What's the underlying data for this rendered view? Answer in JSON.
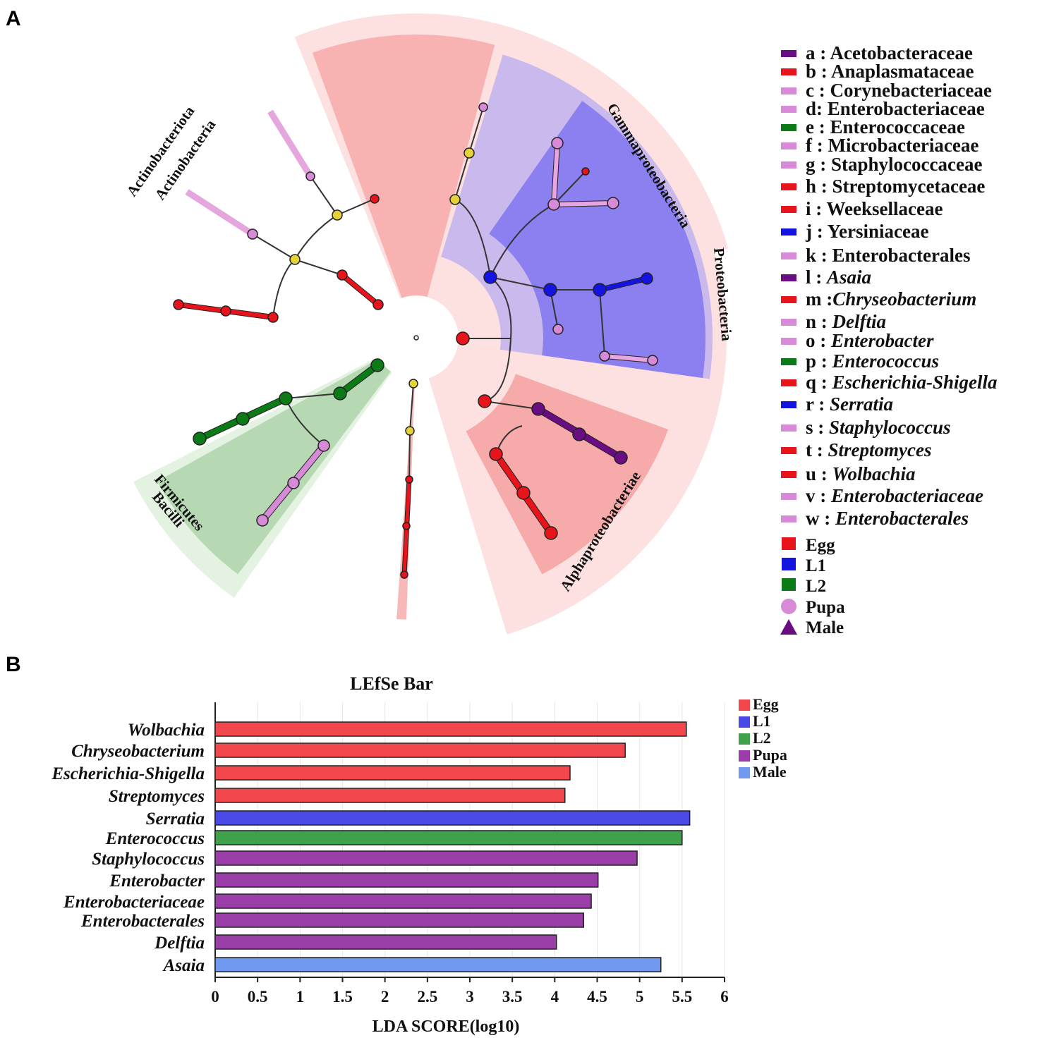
{
  "panel_a": {
    "label": "A",
    "cladogram": {
      "clade_labels": {
        "actinobacteriota": "Actinobacteriota",
        "actinobacteria": "Actinobacteria",
        "gammaproteobacteria": "Gammaproteobacteria",
        "proteobacteria": "Proteobacteria",
        "alphaproteobacteriae": "Alphaproteobacteriae",
        "firmicutes": "Firmicutes",
        "bacilli": "Bacilli"
      }
    },
    "legend": {
      "taxa": [
        {
          "code": "a : ",
          "name": "Acetobacteraceae",
          "italic": false,
          "color": "#6a0d83"
        },
        {
          "code": "b : ",
          "name": "Anaplasmataceae",
          "italic": false,
          "color": "#e8141b"
        },
        {
          "code": "c : ",
          "name": "Corynebacteriaceae",
          "italic": false,
          "color": "#d78ad8"
        },
        {
          "code": "d: ",
          "name": "Enterobacteriaceae",
          "italic": false,
          "color": "#d78ad8"
        },
        {
          "code": "e : ",
          "name": "Enterococcaceae",
          "italic": false,
          "color": "#0b7a17"
        },
        {
          "code": "f : ",
          "name": "Microbacteriaceae",
          "italic": false,
          "color": "#d78ad8"
        },
        {
          "code": "g : ",
          "name": "Staphylococcaceae",
          "italic": false,
          "color": "#d78ad8"
        },
        {
          "code": "h : ",
          "name": "Streptomycetaceae",
          "italic": false,
          "color": "#e8141b"
        },
        {
          "code": "i : ",
          "name": "Weeksellaceae",
          "italic": false,
          "color": "#e8141b"
        },
        {
          "code": "j : ",
          "name": "Yersiniaceae",
          "italic": false,
          "color": "#1414e0"
        },
        {
          "code": "k : ",
          "name": "Enterobacterales",
          "italic": false,
          "color": "#d78ad8"
        },
        {
          "code": "l : ",
          "name": "Asaia",
          "italic": true,
          "color": "#6a0d83"
        },
        {
          "code": "m :",
          "name": "Chryseobacterium",
          "italic": true,
          "color": "#e8141b"
        },
        {
          "code": "n : ",
          "name": "Delftia",
          "italic": true,
          "color": "#d78ad8"
        },
        {
          "code": "o : ",
          "name": "Enterobacter",
          "italic": true,
          "color": "#d78ad8"
        },
        {
          "code": "p : ",
          "name": "Enterococcus",
          "italic": true,
          "color": "#0b7a17"
        },
        {
          "code": "q : ",
          "name": "Escherichia-Shigella",
          "italic": true,
          "color": "#e8141b"
        },
        {
          "code": "r : ",
          "name": "Serratia",
          "italic": true,
          "color": "#1414e0"
        },
        {
          "code": "s : ",
          "name": "Staphylococcus",
          "italic": true,
          "color": "#d78ad8"
        },
        {
          "code": "t : ",
          "name": "Streptomyces",
          "italic": true,
          "color": "#e8141b"
        },
        {
          "code": "u : ",
          "name": "Wolbachia",
          "italic": true,
          "color": "#e8141b"
        },
        {
          "code": "v : ",
          "name": "Enterobacteriaceae",
          "italic": true,
          "color": "#d78ad8"
        },
        {
          "code": "w : ",
          "name": "Enterobacterales",
          "italic": true,
          "color": "#d78ad8"
        }
      ],
      "groups": [
        {
          "name": "Egg",
          "shape": "square",
          "color": "#e8141b"
        },
        {
          "name": "L1",
          "shape": "square",
          "color": "#1414e0"
        },
        {
          "name": "L2",
          "shape": "square",
          "color": "#0b7a17"
        },
        {
          "name": "Pupa",
          "shape": "circle",
          "color": "#d78ad8"
        },
        {
          "name": "Male",
          "shape": "triangle",
          "color": "#6a0d83"
        }
      ]
    }
  },
  "panel_b": {
    "label": "B",
    "chart_data": {
      "type": "bar",
      "orientation": "horizontal",
      "title": "LEfSe Bar",
      "xlabel": "LDA SCORE(log10)",
      "ylabel": "",
      "xlim": [
        0,
        6
      ],
      "xticks": [
        "0",
        "0.5",
        "1",
        "1.5",
        "2",
        "2.5",
        "3",
        "3.5",
        "4",
        "4.5",
        "5",
        "5.5",
        "6"
      ],
      "categories": [
        "Wolbachia",
        "Chryseobacterium",
        "Escherichia-Shigella",
        "Streptomyces",
        "Serratia",
        "Enterococcus",
        "Staphylococcus",
        "Enterobacter",
        "Enterobacteriaceae",
        "Enterobacterales",
        "Delftia",
        "Asaia"
      ],
      "values": [
        5.55,
        4.83,
        4.18,
        4.12,
        5.59,
        5.5,
        4.97,
        4.51,
        4.43,
        4.34,
        4.02,
        5.25
      ],
      "groups": [
        "Egg",
        "Egg",
        "Egg",
        "Egg",
        "L1",
        "L2",
        "Pupa",
        "Pupa",
        "Pupa",
        "Pupa",
        "Pupa",
        "Male"
      ],
      "legend": [
        {
          "name": "Egg",
          "color": "#f2484d"
        },
        {
          "name": "L1",
          "color": "#4a4ae8"
        },
        {
          "name": "L2",
          "color": "#3fa14a"
        },
        {
          "name": "Pupa",
          "color": "#9a3fa8"
        },
        {
          "name": "Male",
          "color": "#6f9aef"
        }
      ]
    }
  }
}
